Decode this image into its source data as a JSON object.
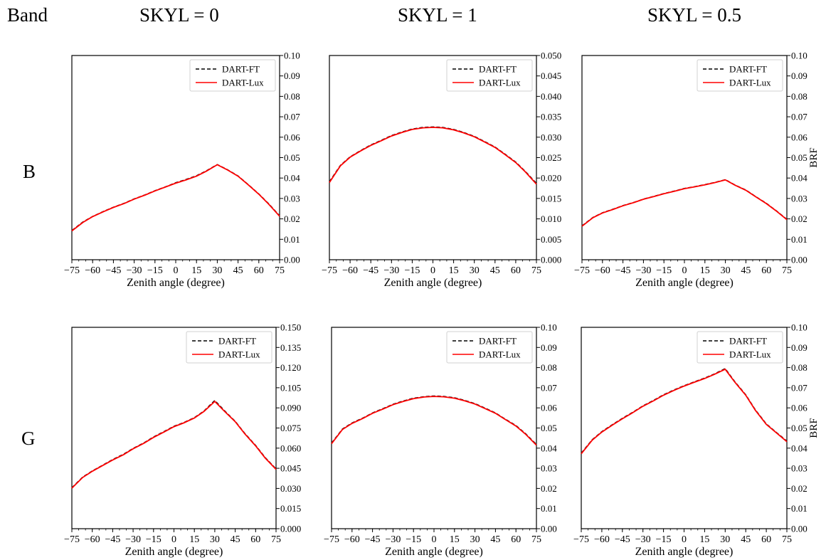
{
  "header": {
    "band_label": "Band",
    "columns": [
      "SKYL = 0",
      "SKYL = 1",
      "SKYL = 0.5"
    ]
  },
  "rows": [
    "B",
    "G"
  ],
  "colors": {
    "ft": "#000000",
    "lux": "#ff0000"
  },
  "chart_data": [
    {
      "type": "line",
      "row": "B",
      "column": "SKYL = 0",
      "xlabel": "Zenith angle (degree)",
      "ylabel": "",
      "xlim": [
        -75,
        75
      ],
      "ylim": [
        0,
        0.1
      ],
      "xticks": [
        -75,
        -60,
        -45,
        -30,
        -15,
        0,
        15,
        30,
        45,
        60,
        75
      ],
      "yticks": [
        "0.00",
        "0.01",
        "0.02",
        "0.03",
        "0.04",
        "0.05",
        "0.06",
        "0.07",
        "0.08",
        "0.09",
        "0.10"
      ],
      "legend": {
        "position": "top-right",
        "entries": [
          "DART-FT",
          "DART-Lux"
        ]
      },
      "x": [
        -75,
        -67,
        -60,
        -52,
        -45,
        -37,
        -30,
        -22,
        -15,
        -7,
        0,
        7,
        15,
        22,
        30,
        37,
        45,
        52,
        60,
        67,
        75
      ],
      "series": [
        {
          "name": "DART-FT",
          "style": "dashed",
          "values": [
            0.0143,
            0.0185,
            0.0212,
            0.0237,
            0.0257,
            0.0277,
            0.0298,
            0.0318,
            0.0338,
            0.0358,
            0.0377,
            0.0392,
            0.0411,
            0.0435,
            0.0466,
            0.0442,
            0.041,
            0.037,
            0.0322,
            0.0275,
            0.0215
          ]
        },
        {
          "name": "DART-Lux",
          "style": "solid",
          "values": [
            0.0141,
            0.0183,
            0.0211,
            0.0236,
            0.0256,
            0.0276,
            0.0297,
            0.0317,
            0.0337,
            0.0357,
            0.0375,
            0.039,
            0.0409,
            0.0433,
            0.0465,
            0.0441,
            0.0409,
            0.0369,
            0.0321,
            0.0273,
            0.0213
          ]
        }
      ]
    },
    {
      "type": "line",
      "row": "B",
      "column": "SKYL = 1",
      "xlabel": "Zenith angle (degree)",
      "ylabel": "",
      "xlim": [
        -75,
        75
      ],
      "ylim": [
        0,
        0.05
      ],
      "xticks": [
        -75,
        -60,
        -45,
        -30,
        -15,
        0,
        15,
        30,
        45,
        60,
        75
      ],
      "yticks": [
        "0.000",
        "0.005",
        "0.010",
        "0.015",
        "0.020",
        "0.025",
        "0.030",
        "0.035",
        "0.040",
        "0.045",
        "0.050"
      ],
      "legend": {
        "position": "top-right",
        "entries": [
          "DART-FT",
          "DART-Lux"
        ]
      },
      "x": [
        -75,
        -67,
        -60,
        -52,
        -45,
        -37,
        -30,
        -22,
        -15,
        -7,
        0,
        7,
        15,
        22,
        30,
        37,
        45,
        52,
        60,
        67,
        75
      ],
      "series": [
        {
          "name": "DART-FT",
          "style": "dashed",
          "values": [
            0.0191,
            0.0231,
            0.0252,
            0.0268,
            0.0281,
            0.0293,
            0.0304,
            0.0313,
            0.032,
            0.0324,
            0.0325,
            0.0324,
            0.0319,
            0.0312,
            0.0302,
            0.029,
            0.0276,
            0.0259,
            0.0239,
            0.0216,
            0.0187
          ]
        },
        {
          "name": "DART-Lux",
          "style": "solid",
          "values": [
            0.0189,
            0.023,
            0.0251,
            0.0267,
            0.028,
            0.0292,
            0.0303,
            0.0312,
            0.0319,
            0.0323,
            0.0324,
            0.0323,
            0.0318,
            0.0311,
            0.0301,
            0.0289,
            0.0275,
            0.0258,
            0.0238,
            0.0215,
            0.0185
          ]
        }
      ]
    },
    {
      "type": "line",
      "row": "B",
      "column": "SKYL = 0.5",
      "xlabel": "Zenith angle (degree)",
      "ylabel": "BRF",
      "xlim": [
        -75,
        75
      ],
      "ylim": [
        0,
        0.1
      ],
      "xticks": [
        -75,
        -60,
        -45,
        -30,
        -15,
        0,
        15,
        30,
        45,
        60,
        75
      ],
      "yticks": [
        "0.00",
        "0.01",
        "0.02",
        "0.03",
        "0.04",
        "0.05",
        "0.06",
        "0.07",
        "0.08",
        "0.09",
        "0.10"
      ],
      "legend": {
        "position": "top-right",
        "entries": [
          "DART-FT",
          "DART-Lux"
        ]
      },
      "x": [
        -75,
        -67,
        -60,
        -52,
        -45,
        -37,
        -30,
        -22,
        -15,
        -7,
        0,
        7,
        15,
        22,
        30,
        37,
        45,
        52,
        60,
        67,
        75
      ],
      "series": [
        {
          "name": "DART-FT",
          "style": "dashed",
          "values": [
            0.0166,
            0.0207,
            0.023,
            0.0248,
            0.0265,
            0.0281,
            0.0297,
            0.0311,
            0.0324,
            0.0337,
            0.0349,
            0.0357,
            0.0368,
            0.0378,
            0.0392,
            0.0366,
            0.0341,
            0.031,
            0.0276,
            0.0241,
            0.0198
          ]
        },
        {
          "name": "DART-Lux",
          "style": "solid",
          "values": [
            0.0164,
            0.0206,
            0.0229,
            0.0247,
            0.0264,
            0.028,
            0.0296,
            0.031,
            0.0323,
            0.0336,
            0.0348,
            0.0356,
            0.0367,
            0.0377,
            0.0391,
            0.0365,
            0.034,
            0.0309,
            0.0275,
            0.024,
            0.0196
          ]
        }
      ]
    },
    {
      "type": "line",
      "row": "G",
      "column": "SKYL = 0",
      "xlabel": "Zenith angle (degree)",
      "ylabel": "",
      "xlim": [
        -75,
        75
      ],
      "ylim": [
        0,
        0.15
      ],
      "xticks": [
        -75,
        -60,
        -45,
        -30,
        -15,
        0,
        15,
        30,
        45,
        60,
        75
      ],
      "yticks": [
        "0.000",
        "0.015",
        "0.030",
        "0.045",
        "0.060",
        "0.075",
        "0.090",
        "0.105",
        "0.120",
        "0.135",
        "0.150"
      ],
      "legend": {
        "position": "top-right",
        "entries": [
          "DART-FT",
          "DART-Lux"
        ]
      },
      "x": [
        -75,
        -67,
        -60,
        -52,
        -45,
        -37,
        -30,
        -22,
        -15,
        -7,
        0,
        7,
        15,
        22,
        30,
        37,
        45,
        52,
        60,
        67,
        75
      ],
      "series": [
        {
          "name": "DART-FT",
          "style": "dashed",
          "values": [
            0.0305,
            0.0385,
            0.043,
            0.0475,
            0.0515,
            0.0555,
            0.0598,
            0.064,
            0.0683,
            0.0725,
            0.0763,
            0.079,
            0.0827,
            0.0876,
            0.0955,
            0.088,
            0.08,
            0.071,
            0.062,
            0.053,
            0.0445
          ]
        },
        {
          "name": "DART-Lux",
          "style": "solid",
          "values": [
            0.0302,
            0.0382,
            0.0428,
            0.0473,
            0.0512,
            0.0552,
            0.0595,
            0.0637,
            0.068,
            0.0722,
            0.076,
            0.0787,
            0.0824,
            0.0873,
            0.0948,
            0.0876,
            0.0797,
            0.0707,
            0.0617,
            0.0527,
            0.0442
          ]
        }
      ]
    },
    {
      "type": "line",
      "row": "G",
      "column": "SKYL = 1",
      "xlabel": "Zenith angle (degree)",
      "ylabel": "",
      "xlim": [
        -75,
        75
      ],
      "ylim": [
        0,
        0.1
      ],
      "xticks": [
        -75,
        -60,
        -45,
        -30,
        -15,
        0,
        15,
        30,
        45,
        60,
        75
      ],
      "yticks": [
        "0.00",
        "0.01",
        "0.02",
        "0.03",
        "0.04",
        "0.05",
        "0.06",
        "0.07",
        "0.08",
        "0.09",
        "0.10"
      ],
      "legend": {
        "position": "top-right",
        "entries": [
          "DART-FT",
          "DART-Lux"
        ]
      },
      "x": [
        -75,
        -67,
        -60,
        -52,
        -45,
        -37,
        -30,
        -22,
        -15,
        -7,
        0,
        7,
        15,
        22,
        30,
        37,
        45,
        52,
        60,
        67,
        75
      ],
      "series": [
        {
          "name": "DART-FT",
          "style": "dashed",
          "values": [
            0.0425,
            0.0495,
            0.0525,
            0.055,
            0.0575,
            0.0597,
            0.0618,
            0.0635,
            0.0648,
            0.0656,
            0.0659,
            0.0657,
            0.065,
            0.0638,
            0.0621,
            0.06,
            0.0575,
            0.0545,
            0.0512,
            0.0472,
            0.0418
          ]
        },
        {
          "name": "DART-Lux",
          "style": "solid",
          "values": [
            0.0422,
            0.0493,
            0.0523,
            0.0548,
            0.0573,
            0.0595,
            0.0616,
            0.0633,
            0.0646,
            0.0654,
            0.0657,
            0.0655,
            0.0648,
            0.0636,
            0.0619,
            0.0598,
            0.0573,
            0.0543,
            0.051,
            0.047,
            0.0415
          ]
        }
      ]
    },
    {
      "type": "line",
      "row": "G",
      "column": "SKYL = 0.5",
      "xlabel": "Zenith angle (degree)",
      "ylabel": "BRF",
      "xlim": [
        -75,
        75
      ],
      "ylim": [
        0,
        0.1
      ],
      "xticks": [
        -75,
        -60,
        -45,
        -30,
        -15,
        0,
        15,
        30,
        45,
        60,
        75
      ],
      "yticks": [
        "0.00",
        "0.01",
        "0.02",
        "0.03",
        "0.04",
        "0.05",
        "0.06",
        "0.07",
        "0.08",
        "0.09",
        "0.10"
      ],
      "legend": {
        "position": "top-right",
        "entries": [
          "DART-FT",
          "DART-Lux"
        ]
      },
      "x": [
        -75,
        -67,
        -60,
        -52,
        -45,
        -37,
        -30,
        -22,
        -15,
        -7,
        0,
        7,
        15,
        22,
        30,
        37,
        45,
        52,
        60,
        67,
        75
      ],
      "series": [
        {
          "name": "DART-FT",
          "style": "dashed",
          "values": [
            0.0375,
            0.0442,
            0.0482,
            0.0518,
            0.0548,
            0.058,
            0.061,
            0.0638,
            0.0665,
            0.069,
            0.071,
            0.0728,
            0.0748,
            0.0768,
            0.0795,
            0.073,
            0.0665,
            0.059,
            0.052,
            0.048,
            0.0435
          ]
        },
        {
          "name": "DART-Lux",
          "style": "solid",
          "values": [
            0.0372,
            0.044,
            0.048,
            0.0516,
            0.0546,
            0.0578,
            0.0608,
            0.0636,
            0.0663,
            0.0688,
            0.0708,
            0.0726,
            0.0746,
            0.0766,
            0.0792,
            0.0728,
            0.0663,
            0.0588,
            0.0518,
            0.0478,
            0.0432
          ]
        }
      ]
    }
  ]
}
